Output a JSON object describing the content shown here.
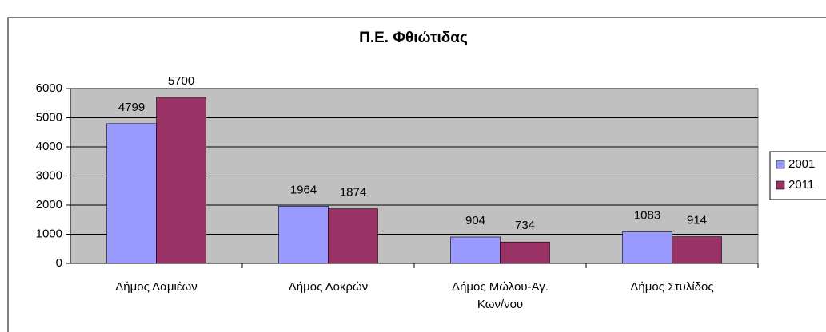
{
  "chart_data": {
    "type": "bar",
    "title": "Π.Ε. Φθιώτιδας",
    "categories": [
      "Δήμος Λαμιέων",
      "Δήμος Λοκρών",
      "Δήμος Μώλου-Αγ. Κων/νου",
      "Δήμος Στυλίδος"
    ],
    "series": [
      {
        "name": "2001",
        "color": "#9999ff",
        "values": [
          4799,
          1964,
          904,
          1083
        ]
      },
      {
        "name": "2011",
        "color": "#993366",
        "values": [
          5700,
          1874,
          734,
          914
        ]
      }
    ],
    "ylim": [
      0,
      6000
    ],
    "yticks": [
      0,
      1000,
      2000,
      3000,
      4000,
      5000,
      6000
    ],
    "grid": true,
    "plot_background": "#c0c0c0",
    "legend": "right"
  }
}
